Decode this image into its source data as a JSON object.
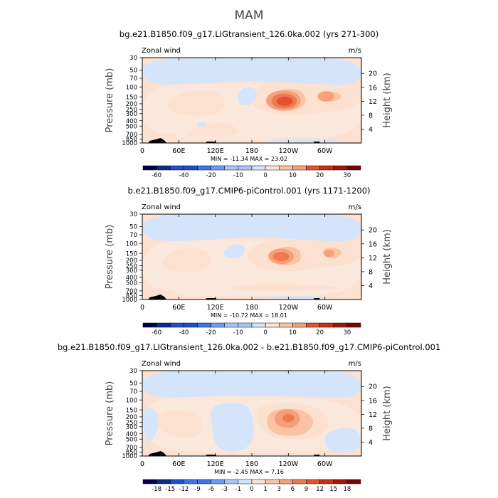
{
  "figure": {
    "title": "MAM"
  },
  "colors": {
    "blue": [
      "#00004c",
      "#0a2a8c",
      "#1f4fd0",
      "#3d75e8",
      "#6f9cf2",
      "#a7c6f8",
      "#d3e4fb"
    ],
    "red": [
      "#fde1d0",
      "#fbc3a4",
      "#f6a07a",
      "#ef7a52",
      "#e2522e",
      "#c92f14",
      "#a4160a",
      "#7a0604"
    ],
    "land": "#000000"
  },
  "chart_data": [
    {
      "type": "contour",
      "title": "bg.e21.B1850.f09_g17.LIGtransient_126.0ka.002 (yrs 271-300)",
      "left_label": "Zonal wind",
      "right_label": "m/s",
      "ylabel": "Pressure (mb)",
      "ylabel_right": "Height (km)",
      "x_ticks": [
        "0",
        "60E",
        "120E",
        "180",
        "120W",
        "60W"
      ],
      "x_tick_values": [
        0,
        60,
        120,
        180,
        240,
        300
      ],
      "xlim": [
        0,
        360
      ],
      "y_ticks": [
        "30",
        "50",
        "70",
        "100",
        "150",
        "200",
        "250",
        "300",
        "400",
        "500",
        "700",
        "850",
        "1000"
      ],
      "y_tick_values": [
        30,
        50,
        70,
        100,
        150,
        200,
        250,
        300,
        400,
        500,
        700,
        850,
        1000
      ],
      "ylim": [
        1000,
        30
      ],
      "y_scale": "log",
      "height_ticks": [
        "4",
        "8",
        "12",
        "16",
        "20"
      ],
      "height_tick_values": [
        4,
        8,
        12,
        16,
        20
      ],
      "stats": "MIN = -11.34   MAX =  23.02",
      "min": -11.34,
      "max": 23.02,
      "colorbar_labels": [
        "-60",
        "-40",
        "-20",
        "-10",
        "0",
        "10",
        "20",
        "30"
      ],
      "colorbar_levels": [
        -60,
        -50,
        -40,
        -30,
        -20,
        -15,
        -10,
        -5,
        0,
        5,
        10,
        15,
        20,
        25,
        30
      ],
      "features": [
        {
          "kind": "positive_max",
          "lon": 230,
          "p": 180,
          "value": 23
        },
        {
          "kind": "positive_secondary",
          "lon": 300,
          "p": 150,
          "value": 10
        },
        {
          "kind": "positive_lobe",
          "lon": 90,
          "p": 180,
          "value": 5
        },
        {
          "kind": "positive_lobe",
          "lon": 120,
          "p": 600,
          "value": 5
        },
        {
          "kind": "negative_region",
          "lon": 170,
          "p": 130,
          "value": -4
        },
        {
          "kind": "negative_band",
          "lon": 180,
          "p": 35,
          "value": -4
        }
      ]
    },
    {
      "type": "contour",
      "title": "b.e21.B1850.f09_g17.CMIP6-piControl.001 (yrs 1171-1200)",
      "left_label": "Zonal wind",
      "right_label": "m/s",
      "ylabel": "Pressure (mb)",
      "ylabel_right": "Height (km)",
      "x_ticks": [
        "0",
        "60E",
        "120E",
        "180",
        "120W",
        "60W"
      ],
      "x_tick_values": [
        0,
        60,
        120,
        180,
        240,
        300
      ],
      "xlim": [
        0,
        360
      ],
      "y_ticks": [
        "30",
        "50",
        "70",
        "100",
        "150",
        "200",
        "250",
        "300",
        "400",
        "500",
        "700",
        "850",
        "1000"
      ],
      "y_tick_values": [
        30,
        50,
        70,
        100,
        150,
        200,
        250,
        300,
        400,
        500,
        700,
        850,
        1000
      ],
      "ylim": [
        1000,
        30
      ],
      "y_scale": "log",
      "height_ticks": [
        "4",
        "8",
        "12",
        "16",
        "20"
      ],
      "height_tick_values": [
        4,
        8,
        12,
        16,
        20
      ],
      "stats": "MIN = -10.72   MAX =  18.01",
      "min": -10.72,
      "max": 18.01,
      "colorbar_labels": [
        "-60",
        "-40",
        "-20",
        "-10",
        "0",
        "10",
        "20",
        "30"
      ],
      "colorbar_levels": [
        -60,
        -50,
        -40,
        -30,
        -20,
        -15,
        -10,
        -5,
        0,
        5,
        10,
        15,
        20,
        25,
        30
      ],
      "features": [
        {
          "kind": "positive_max",
          "lon": 225,
          "p": 180,
          "value": 18
        },
        {
          "kind": "positive_secondary",
          "lon": 305,
          "p": 150,
          "value": 12
        },
        {
          "kind": "positive_lobe",
          "lon": 70,
          "p": 180,
          "value": 5
        },
        {
          "kind": "negative_region",
          "lon": 140,
          "p": 130,
          "value": -4
        },
        {
          "kind": "negative_band",
          "lon": 180,
          "p": 35,
          "value": -4
        }
      ]
    },
    {
      "type": "contour",
      "title": "bg.e21.B1850.f09_g17.LIGtransient_126.0ka.002 - b.e21.B1850.f09_g17.CMIP6-piControl.001",
      "left_label": "Zonal wind",
      "right_label": "m/s",
      "ylabel": "Pressure (mb)",
      "ylabel_right": "Height (km)",
      "x_ticks": [
        "0",
        "60E",
        "120E",
        "180",
        "120W",
        "60W"
      ],
      "x_tick_values": [
        0,
        60,
        120,
        180,
        240,
        300
      ],
      "xlim": [
        0,
        360
      ],
      "y_ticks": [
        "30",
        "50",
        "70",
        "100",
        "150",
        "200",
        "250",
        "300",
        "400",
        "500",
        "700",
        "850",
        "1000"
      ],
      "y_tick_values": [
        30,
        50,
        70,
        100,
        150,
        200,
        250,
        300,
        400,
        500,
        700,
        850,
        1000
      ],
      "ylim": [
        1000,
        30
      ],
      "y_scale": "log",
      "height_ticks": [
        "4",
        "8",
        "12",
        "16",
        "20"
      ],
      "height_tick_values": [
        4,
        8,
        12,
        16,
        20
      ],
      "stats": "MIN =  -2.45   MAX =   7.16",
      "min": -2.45,
      "max": 7.16,
      "colorbar_labels": [
        "-18",
        "-15",
        "-12",
        "-9",
        "-6",
        "-3",
        "-1",
        "0",
        "1",
        "3",
        "6",
        "9",
        "12",
        "15",
        "18"
      ],
      "colorbar_levels": [
        -18,
        -15,
        -12,
        -9,
        -6,
        -3,
        -1,
        0,
        1,
        3,
        6,
        9,
        12,
        15,
        18
      ],
      "features": [
        {
          "kind": "positive_max",
          "lon": 230,
          "p": 200,
          "value": 7
        },
        {
          "kind": "positive_lobe",
          "lon": 75,
          "p": 250,
          "value": 2
        },
        {
          "kind": "negative_region",
          "lon": 150,
          "p": 300,
          "value": -1.5
        },
        {
          "kind": "negative_band",
          "lon": 180,
          "p": 40,
          "value": -1
        }
      ]
    }
  ]
}
